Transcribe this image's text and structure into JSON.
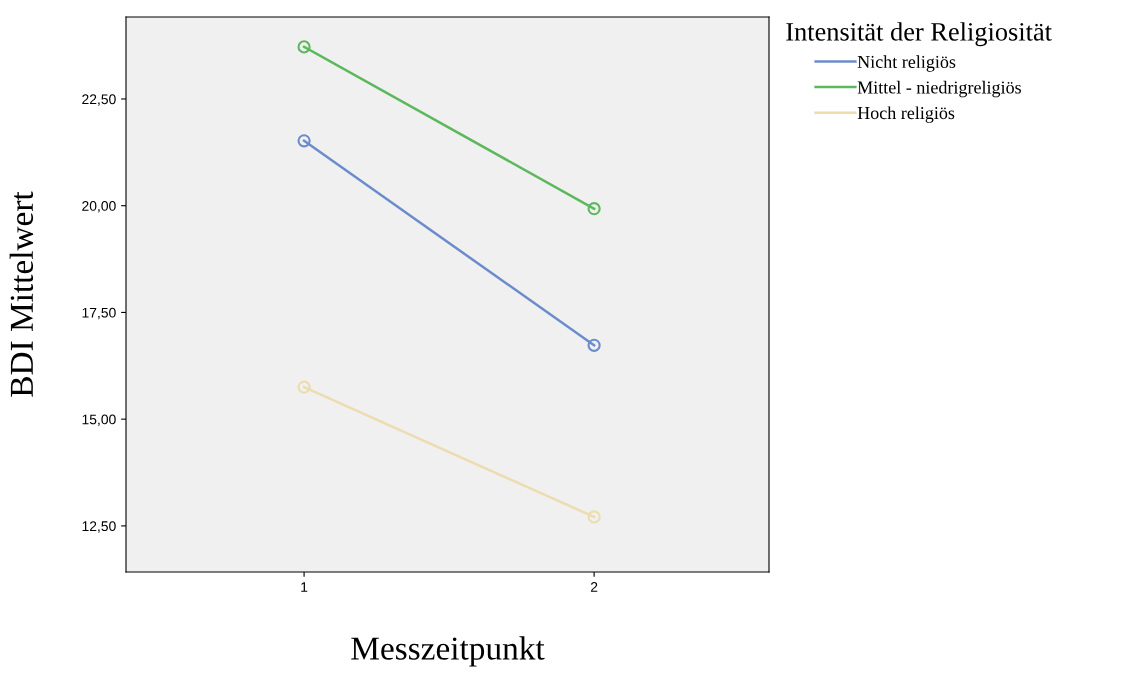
{
  "chart_data": {
    "type": "line",
    "xlabel": "Messzeitpunkt",
    "ylabel": "BDI Mittelwert",
    "legend_title": "Intensität der Religiosität",
    "x": [
      1,
      2
    ],
    "series": [
      {
        "name": "Nicht religiös",
        "color": "#6b8ccc",
        "values": [
          21.52,
          16.73
        ]
      },
      {
        "name": "Mittel - niedrigreligiös",
        "color": "#5cb85c",
        "values": [
          23.72,
          19.93
        ]
      },
      {
        "name": "Hoch religiös",
        "color": "#ecdcb0",
        "values": [
          15.75,
          12.71
        ]
      }
    ],
    "xlim": [
      0.386,
      2.603
    ],
    "xticks": [
      1,
      2
    ],
    "ylim": [
      11.42,
      24.42
    ],
    "yticks": [
      {
        "value": 12.5,
        "label": "12,50"
      },
      {
        "value": 15,
        "label": "15,00"
      },
      {
        "value": 17.5,
        "label": "17,50"
      },
      {
        "value": 20,
        "label": "20,00"
      },
      {
        "value": 22.5,
        "label": "22,50"
      }
    ],
    "marker": "circle",
    "line_style": "solid",
    "grid": false,
    "legend": "top right"
  }
}
